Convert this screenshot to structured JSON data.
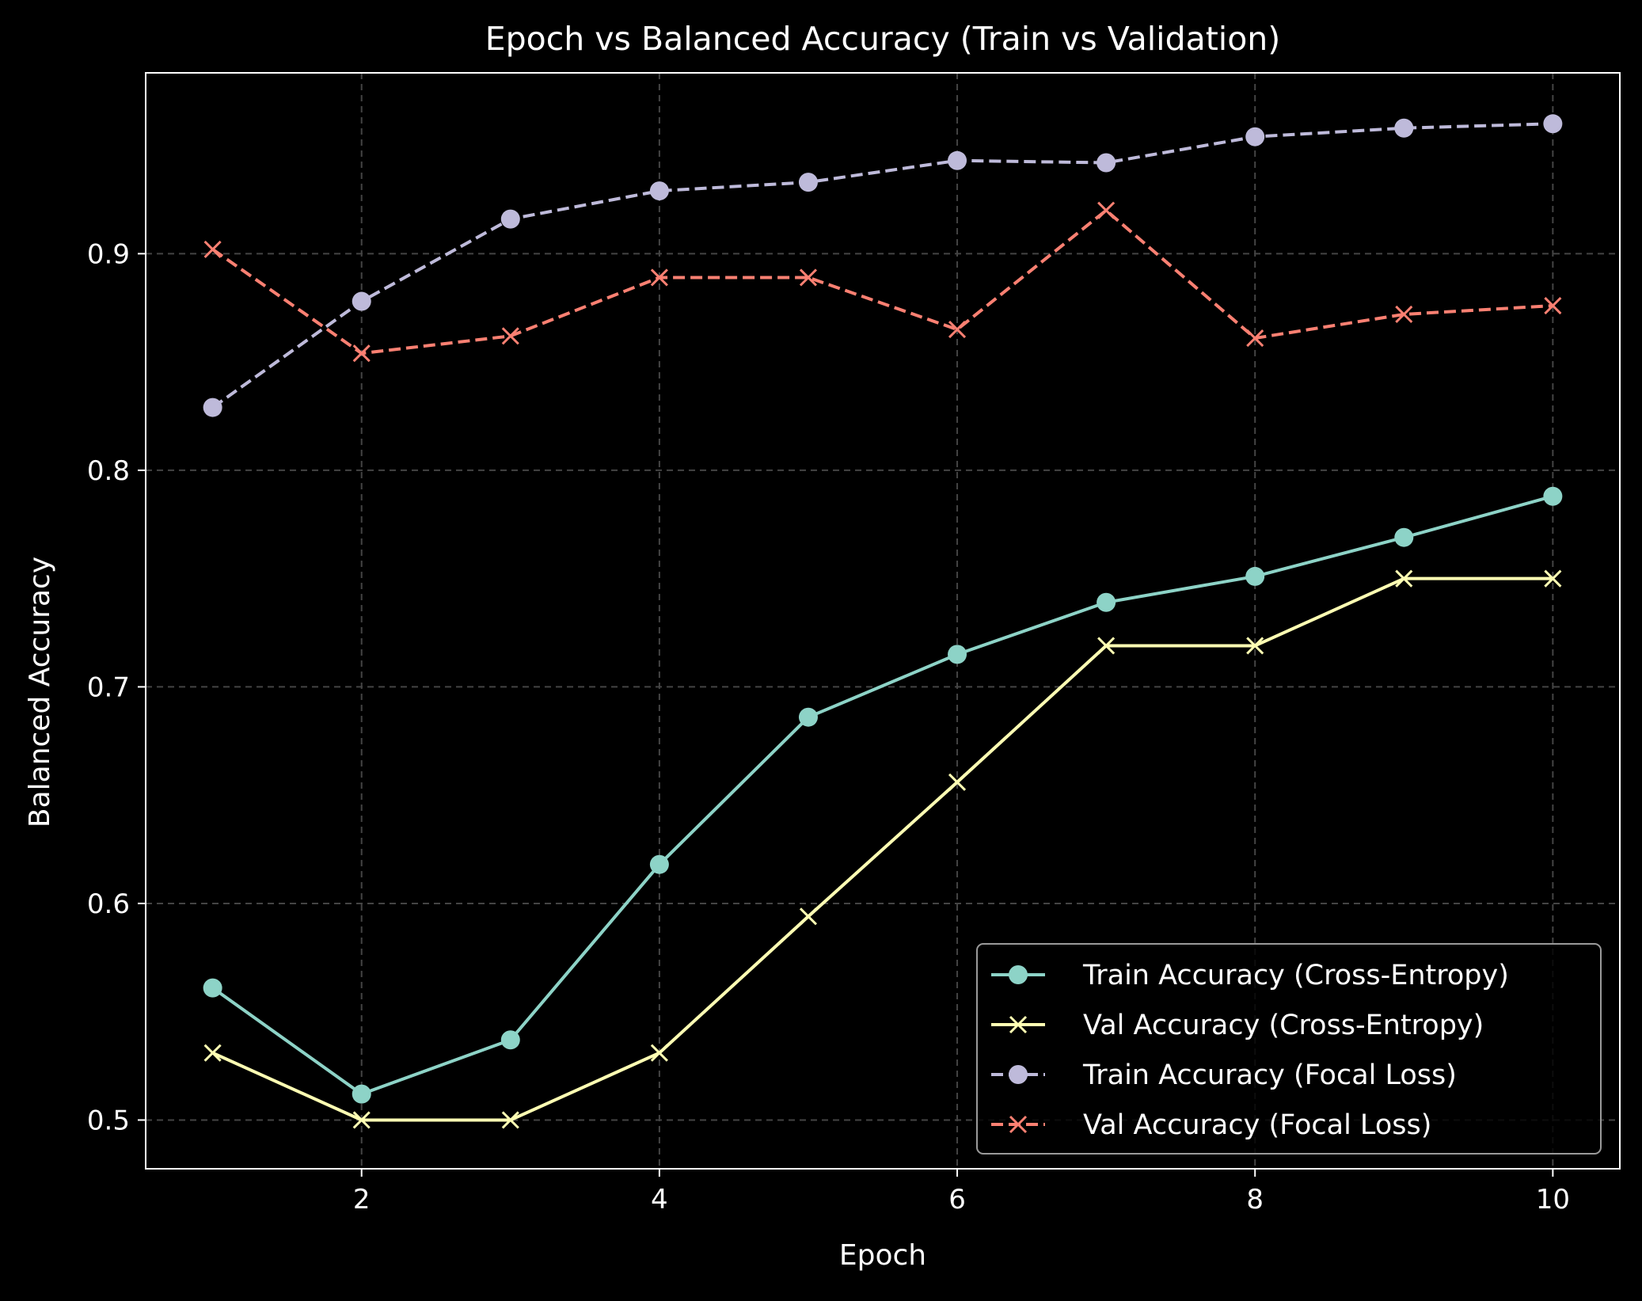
{
  "chart_data": {
    "type": "line",
    "title": "Epoch vs Balanced Accuracy (Train vs Validation)",
    "xlabel": "Epoch",
    "ylabel": "Balanced Accuracy",
    "xlim": [
      0.55,
      10.45
    ],
    "ylim": [
      0.4775,
      0.9835
    ],
    "xticks": [
      2,
      4,
      6,
      8,
      10
    ],
    "yticks": [
      0.5,
      0.6,
      0.7,
      0.8,
      0.9
    ],
    "x": [
      1,
      2,
      3,
      4,
      5,
      6,
      7,
      8,
      9,
      10
    ],
    "grid": true,
    "legend_position": "lower-right",
    "background": "#000000",
    "series": [
      {
        "name": "Train Accuracy (Cross-Entropy)",
        "values": [
          0.561,
          0.512,
          0.537,
          0.618,
          0.686,
          0.715,
          0.739,
          0.751,
          0.769,
          0.788
        ],
        "color": "#8dd3c7",
        "line": "solid",
        "marker": "circle"
      },
      {
        "name": "Val Accuracy (Cross-Entropy)",
        "values": [
          0.531,
          0.5,
          0.5,
          0.531,
          0.594,
          0.656,
          0.719,
          0.719,
          0.75,
          0.75
        ],
        "color": "#ffffb3",
        "line": "solid",
        "marker": "x"
      },
      {
        "name": "Train Accuracy (Focal Loss)",
        "values": [
          0.829,
          0.878,
          0.916,
          0.929,
          0.933,
          0.943,
          0.942,
          0.954,
          0.958,
          0.96
        ],
        "color": "#bebada",
        "line": "dashed",
        "marker": "circle"
      },
      {
        "name": "Val Accuracy (Focal Loss)",
        "values": [
          0.902,
          0.854,
          0.862,
          0.889,
          0.889,
          0.865,
          0.92,
          0.861,
          0.872,
          0.876
        ],
        "color": "#fb8072",
        "line": "dashed",
        "marker": "x"
      }
    ]
  }
}
